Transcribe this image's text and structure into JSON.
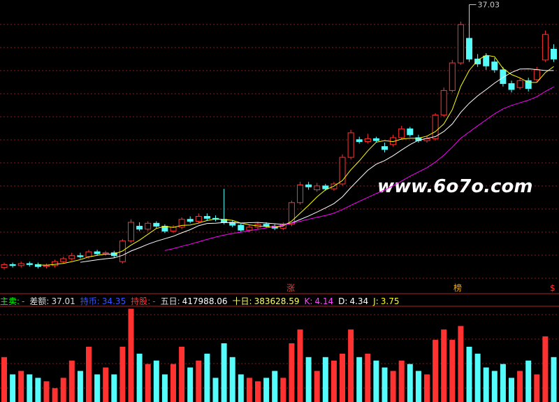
{
  "chart_data": {
    "type": "candlestick",
    "watermark": "www.6o7o.com",
    "ylim": [
      8,
      37.5
    ],
    "vlim": [
      0,
      820000
    ],
    "up_color": "#ff3232",
    "down_color": "#54fcfc",
    "ma": [
      {
        "period": 5,
        "color": "#ffff00"
      },
      {
        "period": 10,
        "color": "#ffffff"
      },
      {
        "period": 20,
        "color": "#ff00ff"
      }
    ],
    "open": [
      10.3,
      10.6,
      10.5,
      10.7,
      10.6,
      10.4,
      10.5,
      10.9,
      11.2,
      11.5,
      11.4,
      11.9,
      11.7,
      11.8,
      10.9,
      13.0,
      14.5,
      14.2,
      14.8,
      14.5,
      14.0,
      14.4,
      15.2,
      15.0,
      15.5,
      15.3,
      15.2,
      14.9,
      14.6,
      14.1,
      14.4,
      14.7,
      14.5,
      14.3,
      14.7,
      16.9,
      18.7,
      18.2,
      18.6,
      18.3,
      18.8,
      21.5,
      23.3,
      23.1,
      23.4,
      22.6,
      22.8,
      23.5,
      24.4,
      23.5,
      23.2,
      23.4,
      25.8,
      28.3,
      31.1,
      33.6,
      31.5,
      31.8,
      31.2,
      30.4,
      29.0,
      28.6,
      29.3,
      29.4,
      31.4,
      32.5
    ],
    "close": [
      10.6,
      10.5,
      10.7,
      10.6,
      10.4,
      10.5,
      10.9,
      11.2,
      11.5,
      11.4,
      11.9,
      11.7,
      11.8,
      11.5,
      13.0,
      14.9,
      14.2,
      14.8,
      14.5,
      14.0,
      14.4,
      15.2,
      15.0,
      15.5,
      15.3,
      15.2,
      14.9,
      14.6,
      14.1,
      14.4,
      14.7,
      14.5,
      14.3,
      14.7,
      16.9,
      18.7,
      18.5,
      18.6,
      18.3,
      18.8,
      21.5,
      24.0,
      23.1,
      23.4,
      23.2,
      22.3,
      23.5,
      24.4,
      23.8,
      23.2,
      23.4,
      25.8,
      28.3,
      31.1,
      35.0,
      31.5,
      31.0,
      30.8,
      30.4,
      29.0,
      28.4,
      29.3,
      28.5,
      30.4,
      34.0,
      31.5
    ],
    "high": [
      10.8,
      10.8,
      10.9,
      10.9,
      10.8,
      10.7,
      11.1,
      11.4,
      11.8,
      11.8,
      12.1,
      12.1,
      12.0,
      12.0,
      13.2,
      15.2,
      14.9,
      15.0,
      15.0,
      14.7,
      14.6,
      15.4,
      15.5,
      15.8,
      15.8,
      15.6,
      18.3,
      15.1,
      14.8,
      14.6,
      14.9,
      14.9,
      14.7,
      14.9,
      17.1,
      19.0,
      19.0,
      18.9,
      18.8,
      19.0,
      21.8,
      24.3,
      23.6,
      23.9,
      23.6,
      23.0,
      23.8,
      24.7,
      24.6,
      23.8,
      23.7,
      26.0,
      28.6,
      31.4,
      35.3,
      37.03,
      32.0,
      32.1,
      31.6,
      30.7,
      29.3,
      29.6,
      29.6,
      30.7,
      34.4,
      33.0
    ],
    "low": [
      10.1,
      10.3,
      10.3,
      10.4,
      10.2,
      10.2,
      10.3,
      10.7,
      11.0,
      11.2,
      11.2,
      11.5,
      11.5,
      11.3,
      10.7,
      12.8,
      14.0,
      14.0,
      14.3,
      13.8,
      13.8,
      14.2,
      14.8,
      14.8,
      15.1,
      15.0,
      14.7,
      14.4,
      13.9,
      13.9,
      14.2,
      14.3,
      14.1,
      14.1,
      14.5,
      16.7,
      18.2,
      18.0,
      18.1,
      18.1,
      18.6,
      21.3,
      22.9,
      22.9,
      23.0,
      22.0,
      22.6,
      23.3,
      23.6,
      23.0,
      23.0,
      23.2,
      25.6,
      28.1,
      30.9,
      31.2,
      30.7,
      30.4,
      30.1,
      28.7,
      28.1,
      28.4,
      28.2,
      29.2,
      31.2,
      31.2
    ],
    "volume": [
      390000,
      240000,
      270000,
      240000,
      210000,
      180000,
      120000,
      210000,
      360000,
      270000,
      480000,
      240000,
      300000,
      240000,
      480000,
      810000,
      420000,
      330000,
      360000,
      240000,
      330000,
      480000,
      300000,
      360000,
      420000,
      210000,
      510000,
      390000,
      240000,
      210000,
      180000,
      210000,
      270000,
      210000,
      510000,
      630000,
      390000,
      270000,
      390000,
      360000,
      420000,
      630000,
      390000,
      420000,
      360000,
      300000,
      270000,
      360000,
      330000,
      270000,
      240000,
      540000,
      630000,
      540000,
      660000,
      480000,
      420000,
      300000,
      270000,
      330000,
      210000,
      270000,
      360000,
      240000,
      570000,
      390000
    ],
    "annotations": [
      "涨",
      "榜",
      "$"
    ],
    "indicators": [
      {
        "label": "主卖:",
        "value": "-",
        "color": "#00ff00"
      },
      {
        "label": "差额:",
        "value": 37.01,
        "color": "#dddddd"
      },
      {
        "label": "持币:",
        "value": 34.35,
        "color": "#3355ff"
      },
      {
        "label": "持股:",
        "value": "-",
        "color": "#ff3232"
      },
      {
        "label": "五日:",
        "value": 417988.06,
        "color": "#ffffff"
      },
      {
        "label": "十日:",
        "value": 383628.59,
        "color": "#ffff66"
      },
      {
        "label": "K:",
        "value": 4.14,
        "color": "#ff44ff"
      },
      {
        "label": "D:",
        "value": 4.34,
        "color": "#ffffff"
      },
      {
        "label": "J:",
        "value": 3.75,
        "color": "#ffff00"
      }
    ]
  }
}
